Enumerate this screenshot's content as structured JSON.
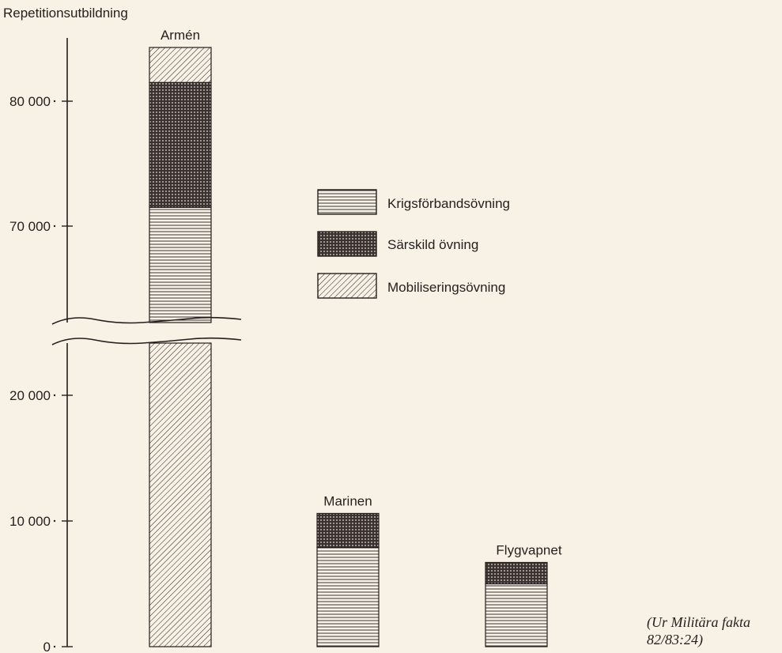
{
  "chart_data": {
    "type": "bar",
    "stacked": true,
    "ylabel": "Repetitionsutbildning",
    "categories": [
      "Armén",
      "Marinen",
      "Flygvapnet"
    ],
    "series": [
      {
        "name": "Mobiliseringsövning",
        "values": [
          84300,
          0,
          0
        ]
      },
      {
        "name": "Krigsförbandsövning",
        "values": [
          71500,
          7900,
          5000
        ]
      },
      {
        "name": "Särskild övning",
        "values": [
          81500,
          10600,
          6700
        ]
      }
    ],
    "legend": [
      {
        "label": "Krigsförbandsövning",
        "pattern": "horizontal"
      },
      {
        "label": "Särskild övning",
        "pattern": "crosshatch"
      },
      {
        "label": "Mobiliseringsövning",
        "pattern": "diagonal"
      }
    ],
    "y_ticks": [
      "0",
      "10000",
      "20000",
      "70000",
      "80000"
    ],
    "axis_break": {
      "from": 26000,
      "to": 65000
    },
    "ylim": [
      0,
      85000
    ],
    "legend_position": "center-right",
    "grid": false,
    "colors": {
      "ink": "#231f1c",
      "paper": "#f7f1e6",
      "crosshatch_fill": "#4a4240"
    }
  },
  "source_note": {
    "line1": "(Ur Militära fakta",
    "line2": "82/83:24)"
  }
}
